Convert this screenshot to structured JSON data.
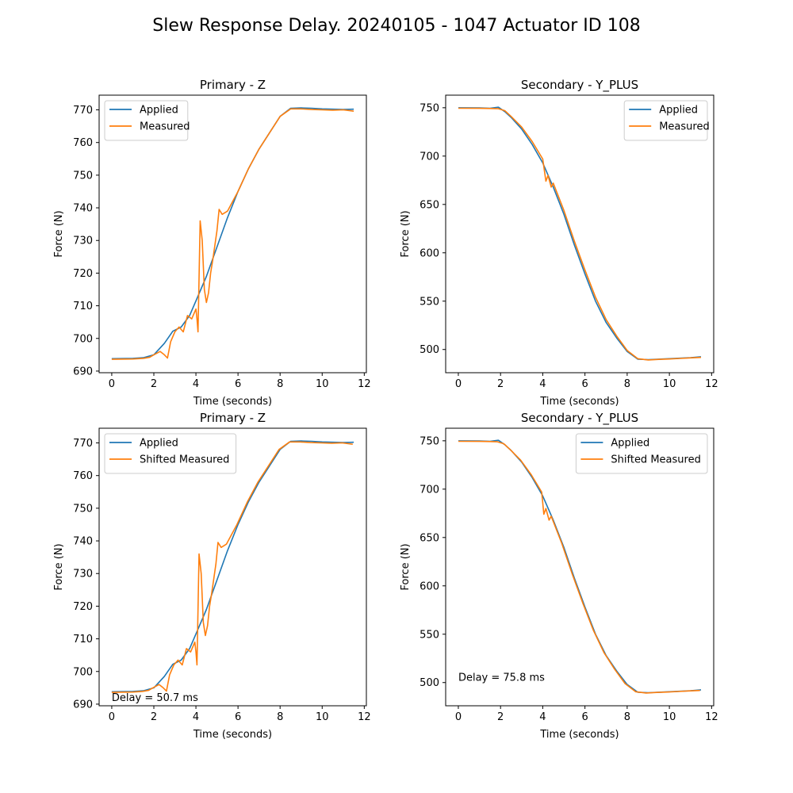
{
  "figure": {
    "title": "Slew Response Delay. 20240105 - 1047 Actuator ID 108"
  },
  "colors": {
    "applied": "#1f77b4",
    "measured": "#ff7f0e"
  },
  "chart_data": [
    {
      "type": "line",
      "title": "Primary - Z",
      "xlabel": "Time (seconds)",
      "ylabel": "Force (N)",
      "xlim": [
        -0.6,
        12.1
      ],
      "ylim": [
        689.5,
        774.5
      ],
      "xticks": [
        0,
        2,
        4,
        6,
        8,
        10,
        12
      ],
      "yticks": [
        690,
        700,
        710,
        720,
        730,
        740,
        750,
        760,
        770
      ],
      "legend": "upper-left",
      "annotation": "",
      "series": [
        {
          "name": "Applied",
          "color": "#1f77b4",
          "x": [
            0,
            1,
            1.5,
            2,
            2.5,
            2.9,
            3.3,
            3.7,
            4,
            4.5,
            5,
            5.5,
            6,
            6.5,
            7,
            7.5,
            8,
            8.5,
            9,
            9.5,
            10,
            10.5,
            11,
            11.5
          ],
          "y": [
            693.8,
            693.9,
            694.1,
            695,
            698.5,
            702.2,
            703.5,
            707,
            711.5,
            719,
            728,
            737,
            745,
            752,
            758,
            763,
            768,
            770.5,
            770.6,
            770.5,
            770.3,
            770.2,
            770.1,
            770.2
          ]
        },
        {
          "name": "Measured",
          "color": "#ff7f0e",
          "x": [
            0,
            1,
            1.5,
            1.8,
            2,
            2.3,
            2.5,
            2.65,
            2.8,
            3,
            3.2,
            3.4,
            3.6,
            3.8,
            4,
            4.05,
            4.1,
            4.2,
            4.3,
            4.4,
            4.5,
            4.6,
            4.7,
            4.8,
            5,
            5.1,
            5.25,
            5.5,
            6,
            6.5,
            7,
            7.5,
            8,
            8.5,
            9,
            9.5,
            10,
            10.5,
            11,
            11.5
          ],
          "y": [
            693.6,
            693.7,
            693.9,
            694.2,
            695,
            696,
            695,
            694,
            699,
            702,
            703.5,
            702,
            707,
            706,
            709,
            706,
            702,
            736,
            730,
            715,
            711,
            714,
            720,
            724,
            733,
            739.5,
            738,
            739,
            745,
            752,
            758,
            763,
            768,
            770.3,
            770.3,
            770.1,
            770,
            769.9,
            770,
            769.6
          ]
        }
      ]
    },
    {
      "type": "line",
      "title": "Secondary - Y_PLUS",
      "xlabel": "Time (seconds)",
      "ylabel": "Force (N)",
      "xlim": [
        -0.6,
        12.1
      ],
      "ylim": [
        476,
        763
      ],
      "xticks": [
        0,
        2,
        4,
        6,
        8,
        10,
        12
      ],
      "yticks": [
        500,
        550,
        600,
        650,
        700,
        750
      ],
      "legend": "upper-right",
      "annotation": "",
      "series": [
        {
          "name": "Applied",
          "color": "#1f77b4",
          "x": [
            0,
            1,
            1.5,
            1.9,
            2.2,
            2.5,
            3,
            3.5,
            4,
            4.5,
            5,
            5.5,
            6,
            6.5,
            7,
            7.5,
            8,
            8.5,
            9,
            9.5,
            10,
            10.5,
            11,
            11.5
          ],
          "y": [
            750,
            749.8,
            749.5,
            750.5,
            746,
            740,
            728,
            712,
            693,
            668,
            640,
            608,
            578,
            550,
            528,
            512,
            498,
            490,
            489.5,
            490,
            490.5,
            491,
            491.5,
            492.5
          ]
        },
        {
          "name": "Measured",
          "color": "#ff7f0e",
          "x": [
            0,
            1,
            1.5,
            1.9,
            2.2,
            2.5,
            3,
            3.5,
            4,
            4.15,
            4.25,
            4.4,
            4.5,
            5,
            5.5,
            6,
            6.5,
            7,
            7.5,
            8,
            8.5,
            9,
            9.5,
            10,
            10.5,
            11,
            11.5
          ],
          "y": [
            749.5,
            749.4,
            749.2,
            749,
            747,
            741,
            730,
            715,
            697,
            674,
            680,
            668,
            672,
            644,
            612,
            582,
            554,
            531,
            514,
            499,
            490.5,
            489.2,
            489.8,
            490.2,
            490.8,
            491.3,
            491.8
          ]
        }
      ]
    },
    {
      "type": "line",
      "title": "Primary - Z",
      "xlabel": "Time (seconds)",
      "ylabel": "Force (N)",
      "xlim": [
        -0.6,
        12.1
      ],
      "ylim": [
        689.5,
        774.5
      ],
      "xticks": [
        0,
        2,
        4,
        6,
        8,
        10,
        12
      ],
      "yticks": [
        690,
        700,
        710,
        720,
        730,
        740,
        750,
        760,
        770
      ],
      "legend": "upper-left",
      "annotation": "Delay = 50.7 ms",
      "annotation_at": [
        0,
        691
      ],
      "series": [
        {
          "name": "Applied",
          "color": "#1f77b4",
          "x": [
            0,
            1,
            1.5,
            2,
            2.5,
            2.9,
            3.3,
            3.7,
            4,
            4.5,
            5,
            5.5,
            6,
            6.5,
            7,
            7.5,
            8,
            8.5,
            9,
            9.5,
            10,
            10.5,
            11,
            11.5
          ],
          "y": [
            693.8,
            693.9,
            694.1,
            695,
            698.5,
            702.2,
            703.5,
            707,
            711.5,
            719,
            728,
            737,
            745,
            752,
            758,
            763,
            768,
            770.5,
            770.6,
            770.5,
            770.3,
            770.2,
            770.1,
            770.2
          ]
        },
        {
          "name": "Shifted Measured",
          "color": "#ff7f0e",
          "x": [
            0,
            1,
            1.45,
            1.75,
            1.95,
            2.25,
            2.45,
            2.6,
            2.75,
            2.95,
            3.15,
            3.35,
            3.55,
            3.75,
            3.95,
            4.0,
            4.05,
            4.15,
            4.25,
            4.35,
            4.45,
            4.55,
            4.65,
            4.75,
            4.95,
            5.05,
            5.2,
            5.45,
            5.95,
            6.45,
            6.95,
            7.45,
            7.95,
            8.45,
            8.95,
            9.45,
            9.95,
            10.45,
            10.95,
            11.45
          ],
          "y": [
            693.6,
            693.7,
            693.9,
            694.2,
            695,
            696,
            695,
            694,
            699,
            702,
            703.5,
            702,
            707,
            706,
            709,
            706,
            702,
            736,
            730,
            715,
            711,
            714,
            720,
            724,
            733,
            739.5,
            738,
            739,
            745,
            752,
            758,
            763,
            768,
            770.3,
            770.3,
            770.1,
            770,
            769.9,
            770,
            769.6
          ]
        }
      ]
    },
    {
      "type": "line",
      "title": "Secondary - Y_PLUS",
      "xlabel": "Time (seconds)",
      "ylabel": "Force (N)",
      "xlim": [
        -0.6,
        12.1
      ],
      "ylim": [
        476,
        763
      ],
      "xticks": [
        0,
        2,
        4,
        6,
        8,
        10,
        12
      ],
      "yticks": [
        500,
        550,
        600,
        650,
        700,
        750
      ],
      "legend": "upper-right",
      "annotation": "Delay = 75.8 ms",
      "annotation_at": [
        0,
        502
      ],
      "series": [
        {
          "name": "Applied",
          "color": "#1f77b4",
          "x": [
            0,
            1,
            1.5,
            1.9,
            2.2,
            2.5,
            3,
            3.5,
            4,
            4.5,
            5,
            5.5,
            6,
            6.5,
            7,
            7.5,
            8,
            8.5,
            9,
            9.5,
            10,
            10.5,
            11,
            11.5
          ],
          "y": [
            750,
            749.8,
            749.5,
            750.5,
            746,
            740,
            728,
            712,
            693,
            668,
            640,
            608,
            578,
            550,
            528,
            512,
            498,
            490,
            489.5,
            490,
            490.5,
            491,
            491.5,
            492.5
          ]
        },
        {
          "name": "Shifted Measured",
          "color": "#ff7f0e",
          "x": [
            0,
            1,
            1.5,
            1.85,
            2.15,
            2.45,
            2.95,
            3.45,
            3.95,
            4.05,
            4.15,
            4.3,
            4.4,
            4.9,
            5.4,
            5.9,
            6.4,
            6.9,
            7.4,
            7.9,
            8.4,
            8.9,
            9.4,
            9.9,
            10.4,
            10.9,
            11.45
          ],
          "y": [
            749.5,
            749.4,
            749.2,
            749,
            747,
            741,
            730,
            715,
            697,
            674,
            680,
            668,
            672,
            644,
            612,
            582,
            554,
            531,
            514,
            499,
            490.5,
            489.2,
            489.8,
            490.2,
            490.8,
            491.3,
            491.8
          ]
        }
      ]
    }
  ]
}
